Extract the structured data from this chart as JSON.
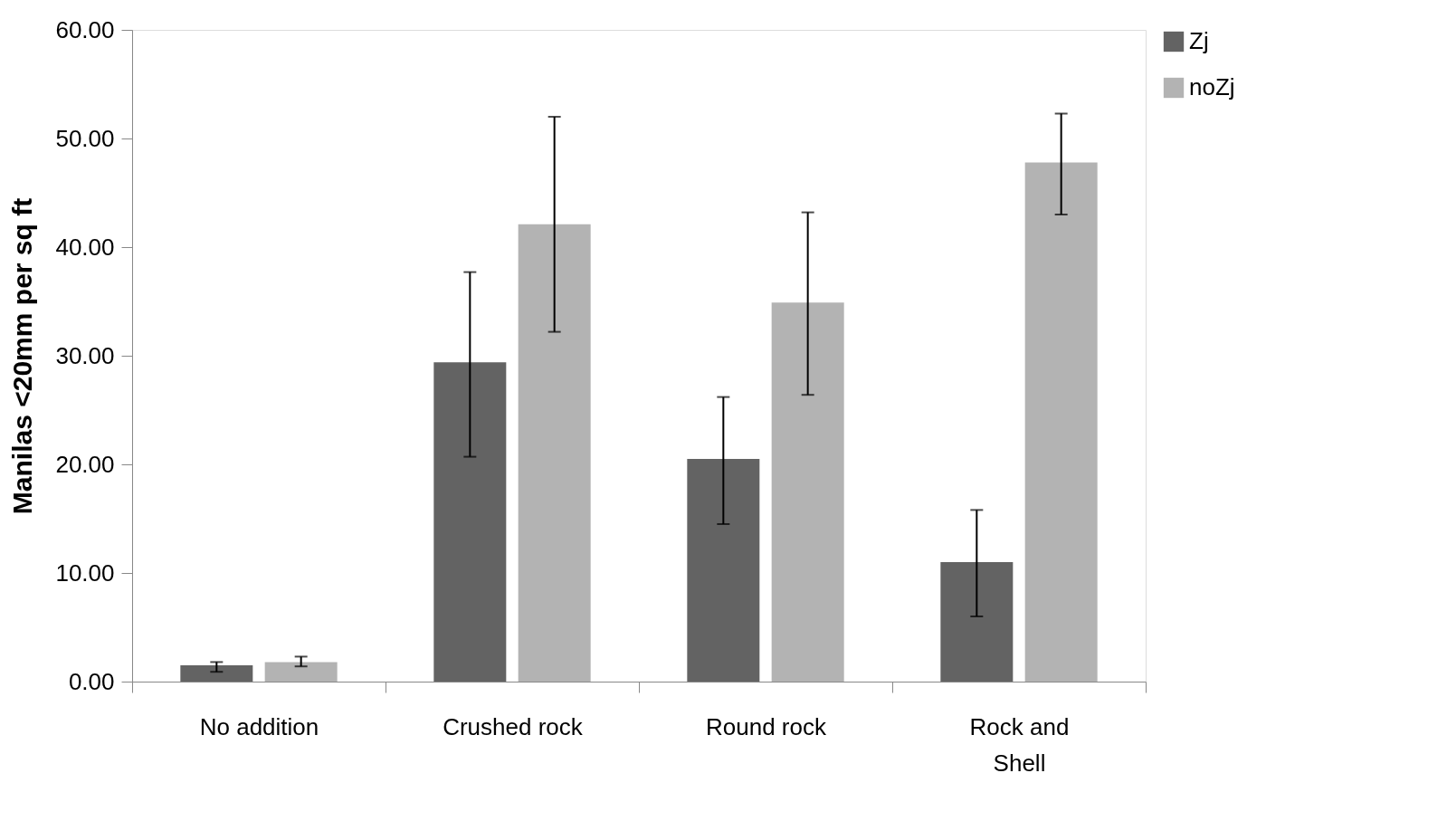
{
  "chart_data": {
    "type": "bar",
    "ylabel": "Manilas <20mm per sq ft",
    "categories": [
      "No addition",
      "Crushed rock",
      "Round rock",
      "Rock and\nShell"
    ],
    "series": [
      {
        "name": "Zj",
        "color": "#636363",
        "values": [
          1.5,
          29.4,
          20.5,
          11.0
        ],
        "errors": [
          [
            0.9,
            1.8
          ],
          [
            20.7,
            37.7
          ],
          [
            14.5,
            26.2
          ],
          [
            6.0,
            15.8
          ]
        ]
      },
      {
        "name": "noZj",
        "color": "#b3b3b3",
        "values": [
          1.8,
          42.1,
          34.9,
          47.8
        ],
        "errors": [
          [
            1.4,
            2.3
          ],
          [
            32.2,
            52.0
          ],
          [
            26.4,
            43.2
          ],
          [
            43.0,
            52.3
          ]
        ]
      }
    ],
    "ylim": [
      0,
      60
    ],
    "yticks": [
      {
        "value": 0,
        "label": "0.00"
      },
      {
        "value": 10,
        "label": "10.00"
      },
      {
        "value": 20,
        "label": "20.00"
      },
      {
        "value": 30,
        "label": "30.00"
      },
      {
        "value": 40,
        "label": "40.00"
      },
      {
        "value": 50,
        "label": "50.00"
      },
      {
        "value": 60,
        "label": "60.00"
      }
    ],
    "grid": false,
    "legend": "right"
  }
}
